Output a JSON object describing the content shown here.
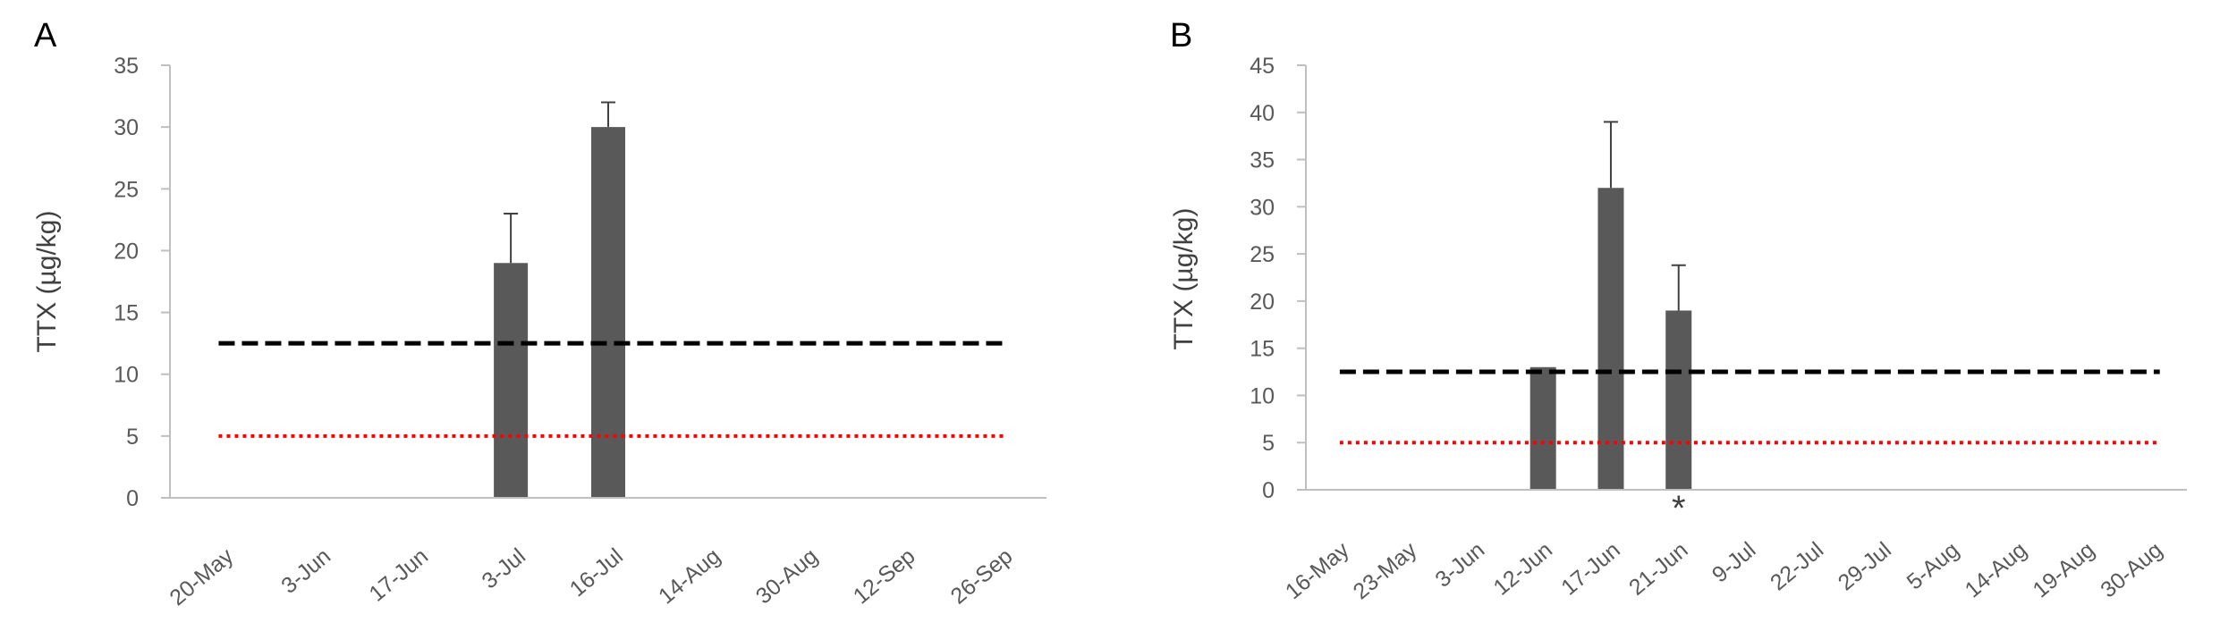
{
  "chart_data": [
    {
      "type": "bar",
      "panel_label": "A",
      "ylabel": "TTX (µg/kg)",
      "xlabel": "",
      "ylim": [
        0,
        35
      ],
      "yticks": [
        0,
        5,
        10,
        15,
        20,
        25,
        30,
        35
      ],
      "categories": [
        "20-May",
        "3-Jun",
        "17-Jun",
        "3-Jul",
        "16-Jul",
        "14-Aug",
        "30-Aug",
        "12-Sep",
        "26-Sep"
      ],
      "values": [
        null,
        null,
        null,
        19,
        30,
        null,
        null,
        null,
        null
      ],
      "error_upper": [
        null,
        null,
        null,
        4,
        2,
        null,
        null,
        null,
        null
      ],
      "annotations": [],
      "reference_lines": [
        {
          "value": 12.5,
          "style": "dashed",
          "color": "#000000"
        },
        {
          "value": 5,
          "style": "dotted",
          "color": "#ff0000"
        }
      ],
      "bar_color": "#595959",
      "grid": false,
      "legend": "none"
    },
    {
      "type": "bar",
      "panel_label": "B",
      "ylabel": "TTX (µg/kg)",
      "xlabel": "",
      "ylim": [
        0,
        45
      ],
      "yticks": [
        0,
        5,
        10,
        15,
        20,
        25,
        30,
        35,
        40,
        45
      ],
      "categories": [
        "16-May",
        "23-May",
        "3-Jun",
        "12-Jun",
        "17-Jun",
        "21-Jun",
        "9-Jul",
        "22-Jul",
        "29-Jul",
        "5-Aug",
        "14-Aug",
        "19-Aug",
        "30-Aug"
      ],
      "values": [
        null,
        null,
        null,
        13,
        32,
        19,
        null,
        null,
        null,
        null,
        null,
        null,
        null
      ],
      "error_upper": [
        null,
        null,
        null,
        null,
        7,
        4.8,
        null,
        null,
        null,
        null,
        null,
        null,
        null
      ],
      "annotations": [
        {
          "category": "21-Jun",
          "text": "*"
        }
      ],
      "reference_lines": [
        {
          "value": 12.5,
          "style": "dashed",
          "color": "#000000"
        },
        {
          "value": 5,
          "style": "dotted",
          "color": "#ff0000"
        }
      ],
      "bar_color": "#595959",
      "grid": false,
      "legend": "none"
    }
  ]
}
